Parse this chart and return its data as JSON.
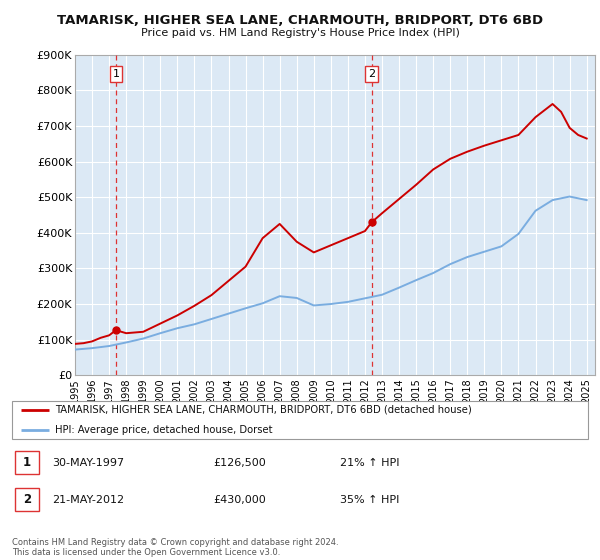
{
  "title": "TAMARISK, HIGHER SEA LANE, CHARMOUTH, BRIDPORT, DT6 6BD",
  "subtitle": "Price paid vs. HM Land Registry's House Price Index (HPI)",
  "ylim": [
    0,
    900000
  ],
  "yticks": [
    0,
    100000,
    200000,
    300000,
    400000,
    500000,
    600000,
    700000,
    800000,
    900000
  ],
  "ytick_labels": [
    "£0",
    "£100K",
    "£200K",
    "£300K",
    "£400K",
    "£500K",
    "£600K",
    "£700K",
    "£800K",
    "£900K"
  ],
  "background_color": "#ffffff",
  "plot_bg_color": "#dce9f5",
  "grid_color": "#ffffff",
  "red_line_color": "#cc0000",
  "blue_line_color": "#7aade0",
  "marker1_date": 1997.4,
  "marker1_value": 126500,
  "marker1_label": "1",
  "marker2_date": 2012.4,
  "marker2_value": 430000,
  "marker2_label": "2",
  "vline_color": "#dd3333",
  "legend_entry1": "TAMARISK, HIGHER SEA LANE, CHARMOUTH, BRIDPORT, DT6 6BD (detached house)",
  "legend_entry2": "HPI: Average price, detached house, Dorset",
  "table_row1": [
    "1",
    "30-MAY-1997",
    "£126,500",
    "21% ↑ HPI"
  ],
  "table_row2": [
    "2",
    "21-MAY-2012",
    "£430,000",
    "35% ↑ HPI"
  ],
  "copyright_text": "Contains HM Land Registry data © Crown copyright and database right 2024.\nThis data is licensed under the Open Government Licence v3.0.",
  "red_x": [
    1995,
    1995.5,
    1996,
    1996.5,
    1997,
    1997.4,
    1998,
    1999,
    2000,
    2001,
    2002,
    2003,
    2004,
    2005,
    2006,
    2007,
    2008,
    2009,
    2010,
    2011,
    2012,
    2012.4,
    2013,
    2014,
    2015,
    2016,
    2017,
    2018,
    2019,
    2020,
    2021,
    2022,
    2023,
    2023.5,
    2024,
    2024.5,
    2025
  ],
  "red_y": [
    88000,
    90000,
    95000,
    105000,
    112000,
    126500,
    118000,
    122000,
    145000,
    168000,
    195000,
    225000,
    265000,
    305000,
    385000,
    425000,
    375000,
    345000,
    365000,
    385000,
    405000,
    430000,
    455000,
    495000,
    535000,
    578000,
    608000,
    628000,
    645000,
    660000,
    675000,
    725000,
    762000,
    740000,
    695000,
    675000,
    665000
  ],
  "blue_x": [
    1995,
    1996,
    1997,
    1998,
    1999,
    2000,
    2001,
    2002,
    2003,
    2004,
    2005,
    2006,
    2007,
    2008,
    2009,
    2010,
    2011,
    2012,
    2013,
    2014,
    2015,
    2016,
    2017,
    2018,
    2019,
    2020,
    2021,
    2022,
    2023,
    2024,
    2025
  ],
  "blue_y": [
    72000,
    76000,
    82000,
    92000,
    103000,
    118000,
    132000,
    143000,
    158000,
    173000,
    188000,
    202000,
    222000,
    217000,
    196000,
    200000,
    206000,
    216000,
    226000,
    246000,
    267000,
    287000,
    312000,
    332000,
    347000,
    362000,
    397000,
    462000,
    492000,
    502000,
    492000
  ]
}
